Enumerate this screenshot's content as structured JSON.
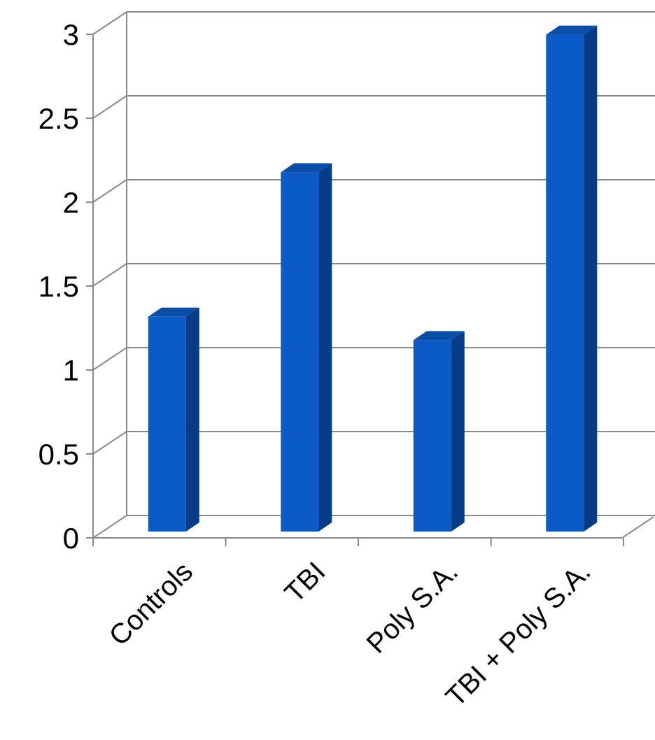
{
  "chart_data": {
    "type": "bar",
    "title": "",
    "xlabel": "",
    "ylabel": "",
    "categories": [
      "Controls",
      "TBI",
      "Poly S.A.",
      "TBI + Poly S.A."
    ],
    "series": [
      {
        "values": [
          1.28,
          2.14,
          1.14,
          2.96
        ]
      }
    ],
    "ylim": [
      0,
      3
    ],
    "yticks": [
      "0",
      "0.5",
      "1",
      "1.5",
      "2",
      "2.5",
      "3"
    ],
    "grid": true,
    "legend": "none",
    "style": "3d-column",
    "colors": {
      "bar_front": "#0a5bc8",
      "bar_side": "#063b85",
      "bar_top": "#0b4ea8",
      "grid": "#8a8a8a",
      "axis": "#8a8a8a"
    }
  }
}
